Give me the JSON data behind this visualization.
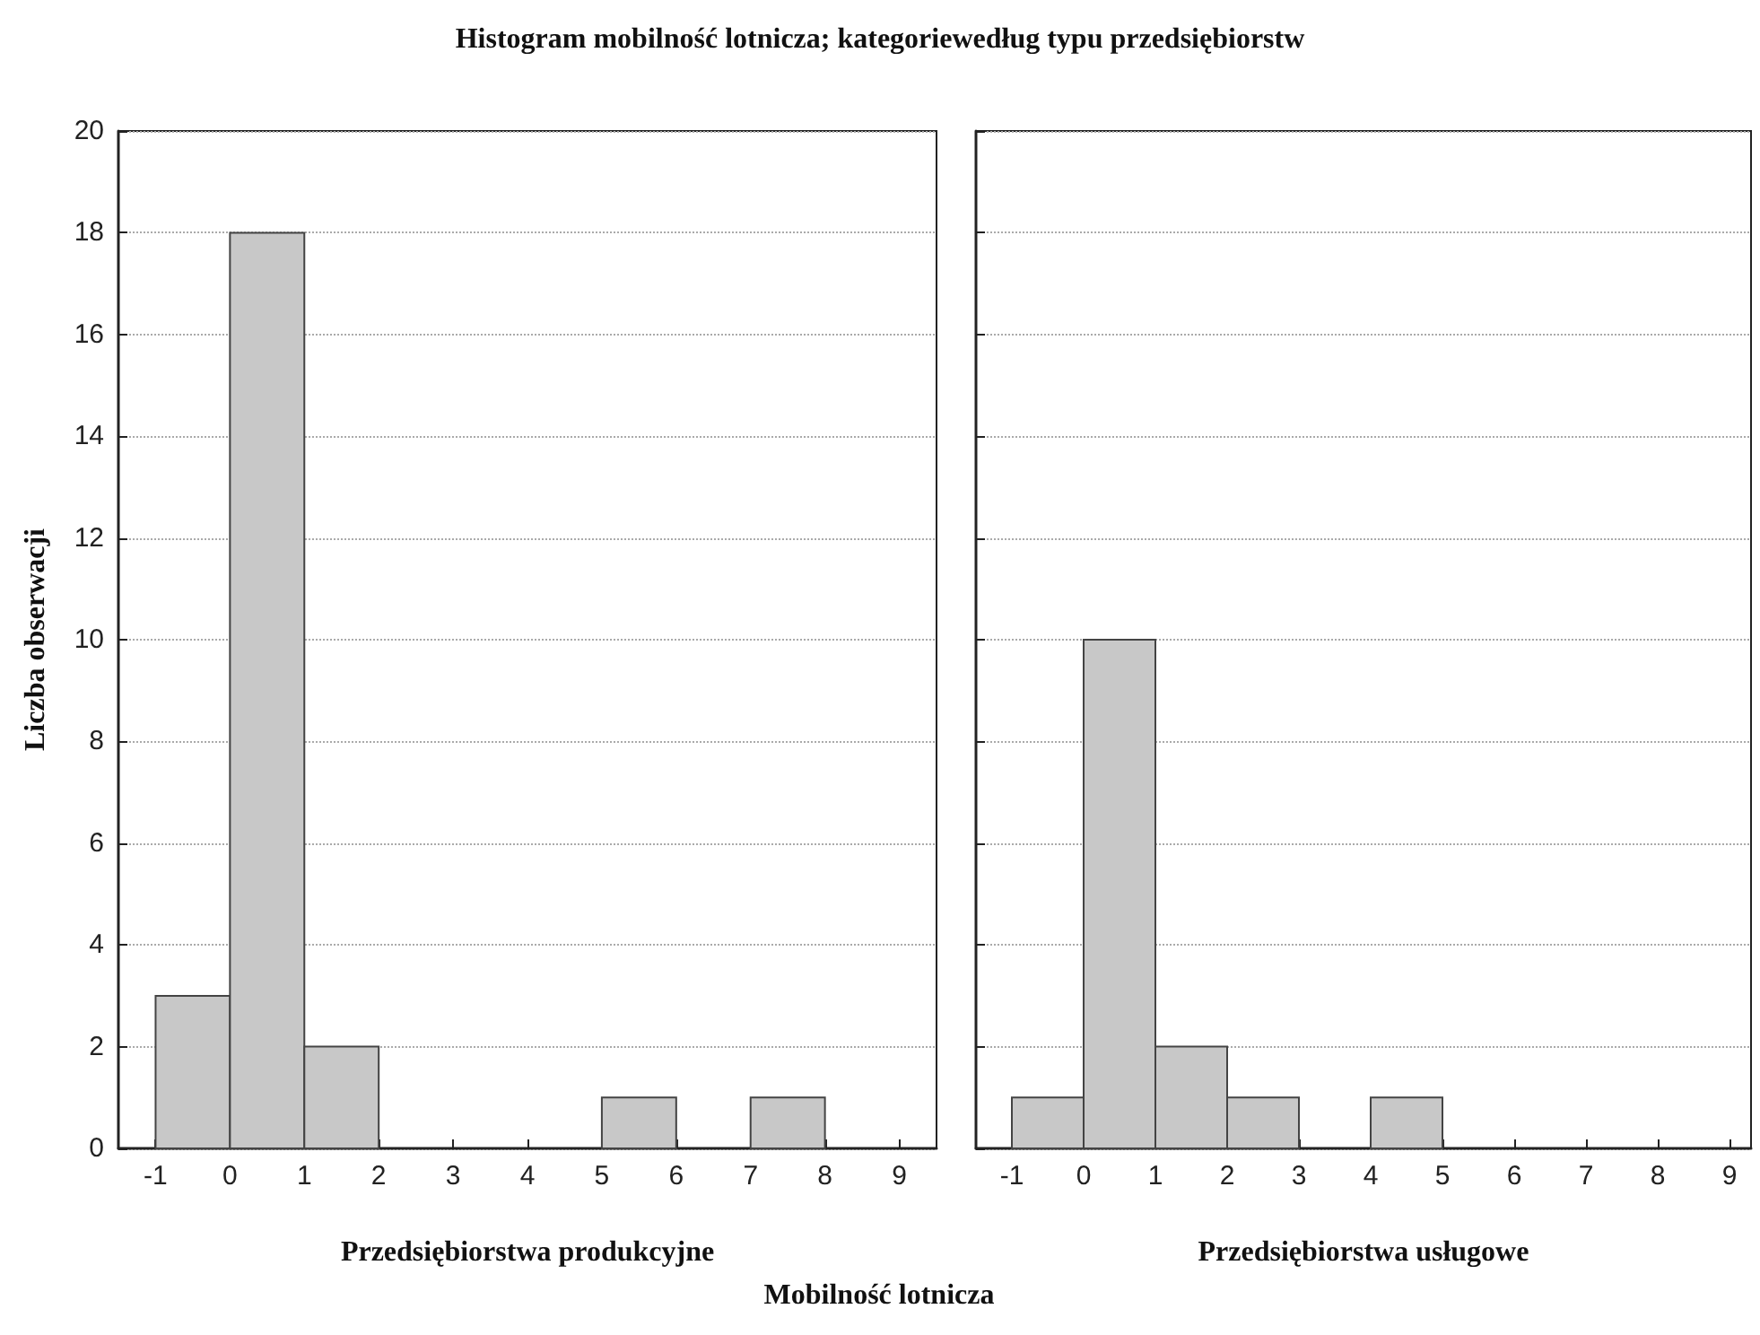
{
  "chart_data": [
    {
      "type": "histogram",
      "title": "Histogram mobilność lotnicza; kategoriewedług typu przedsiębiorstw",
      "ylabel": "Liczba obserwacji",
      "xlabel": "Przedsiębiorstwa produkcyjne",
      "annotations": [
        "Mobilność lotnicza"
      ],
      "bins": [
        -1,
        0,
        1,
        2,
        3,
        4,
        5,
        6,
        7,
        8,
        9
      ],
      "values": [
        3,
        18,
        2,
        0,
        0,
        0,
        1,
        0,
        1,
        0
      ],
      "color": "#c8c8c8",
      "xlim": [
        -1.5,
        9.5
      ],
      "xticks": [
        -1,
        0,
        1,
        2,
        3,
        4,
        5,
        6,
        7,
        8,
        9
      ],
      "ylim": [
        0,
        20
      ],
      "yticks": [
        0,
        2,
        4,
        6,
        8,
        10,
        12,
        14,
        16,
        18,
        20
      ],
      "grid": "y"
    },
    {
      "type": "histogram",
      "xlabel": "Przedsiębiorstwa usługowe",
      "bins": [
        -1,
        0,
        1,
        2,
        3,
        4,
        5,
        6,
        7,
        8,
        9
      ],
      "values": [
        1,
        10,
        2,
        1,
        0,
        1,
        0,
        0,
        0,
        0
      ],
      "color": "#c8c8c8",
      "xlim": [
        -1.5,
        9.3
      ],
      "xticks": [
        -1,
        0,
        1,
        2,
        3,
        4,
        5,
        6,
        7,
        8,
        9
      ],
      "ylim": [
        0,
        20
      ],
      "yticks": [
        0,
        2,
        4,
        6,
        8,
        10,
        12,
        14,
        16,
        18,
        20
      ],
      "grid": "y",
      "tick_labels": "x"
    }
  ]
}
